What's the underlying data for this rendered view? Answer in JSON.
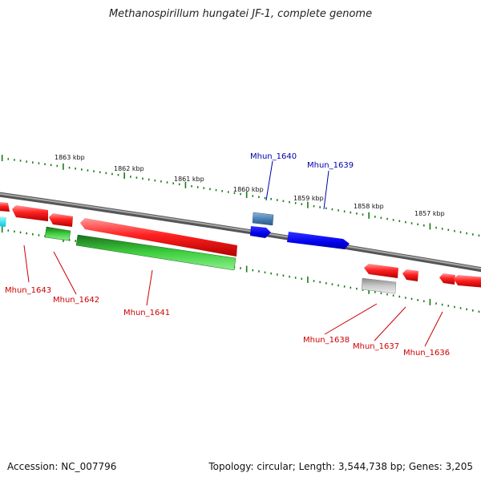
{
  "title": "Methanospirillum hungatei JF-1, complete genome",
  "footer": {
    "accession": "Accession: NC_007796",
    "summary": "Topology: circular; Length: 3,544,738 bp; Genes: 3,205"
  },
  "colors": {
    "backbone": "#808080",
    "tick": "#1a7a1a",
    "red": "#ff2020",
    "green": "#33cc33",
    "blue": "#0000ee",
    "steelblue": "#4a82b4",
    "gray": "#bbbbbb",
    "cyan": "#00e5ee",
    "label_red": "#cc0000",
    "label_blue": "#0000aa"
  },
  "scale_labels": [
    "1863 kbp",
    "1862 kbp",
    "1861 kbp",
    "1860 kbp",
    "1859 kbp",
    "1858 kbp",
    "1857 kbp"
  ],
  "gene_labels": [
    {
      "text": "Mhun_1640",
      "color": "blue"
    },
    {
      "text": "Mhun_1639",
      "color": "blue"
    },
    {
      "text": "Mhun_1643",
      "color": "red"
    },
    {
      "text": "Mhun_1642",
      "color": "red"
    },
    {
      "text": "Mhun_1641",
      "color": "red"
    },
    {
      "text": "Mhun_1638",
      "color": "red"
    },
    {
      "text": "Mhun_1637",
      "color": "red"
    },
    {
      "text": "Mhun_1636",
      "color": "red"
    }
  ]
}
